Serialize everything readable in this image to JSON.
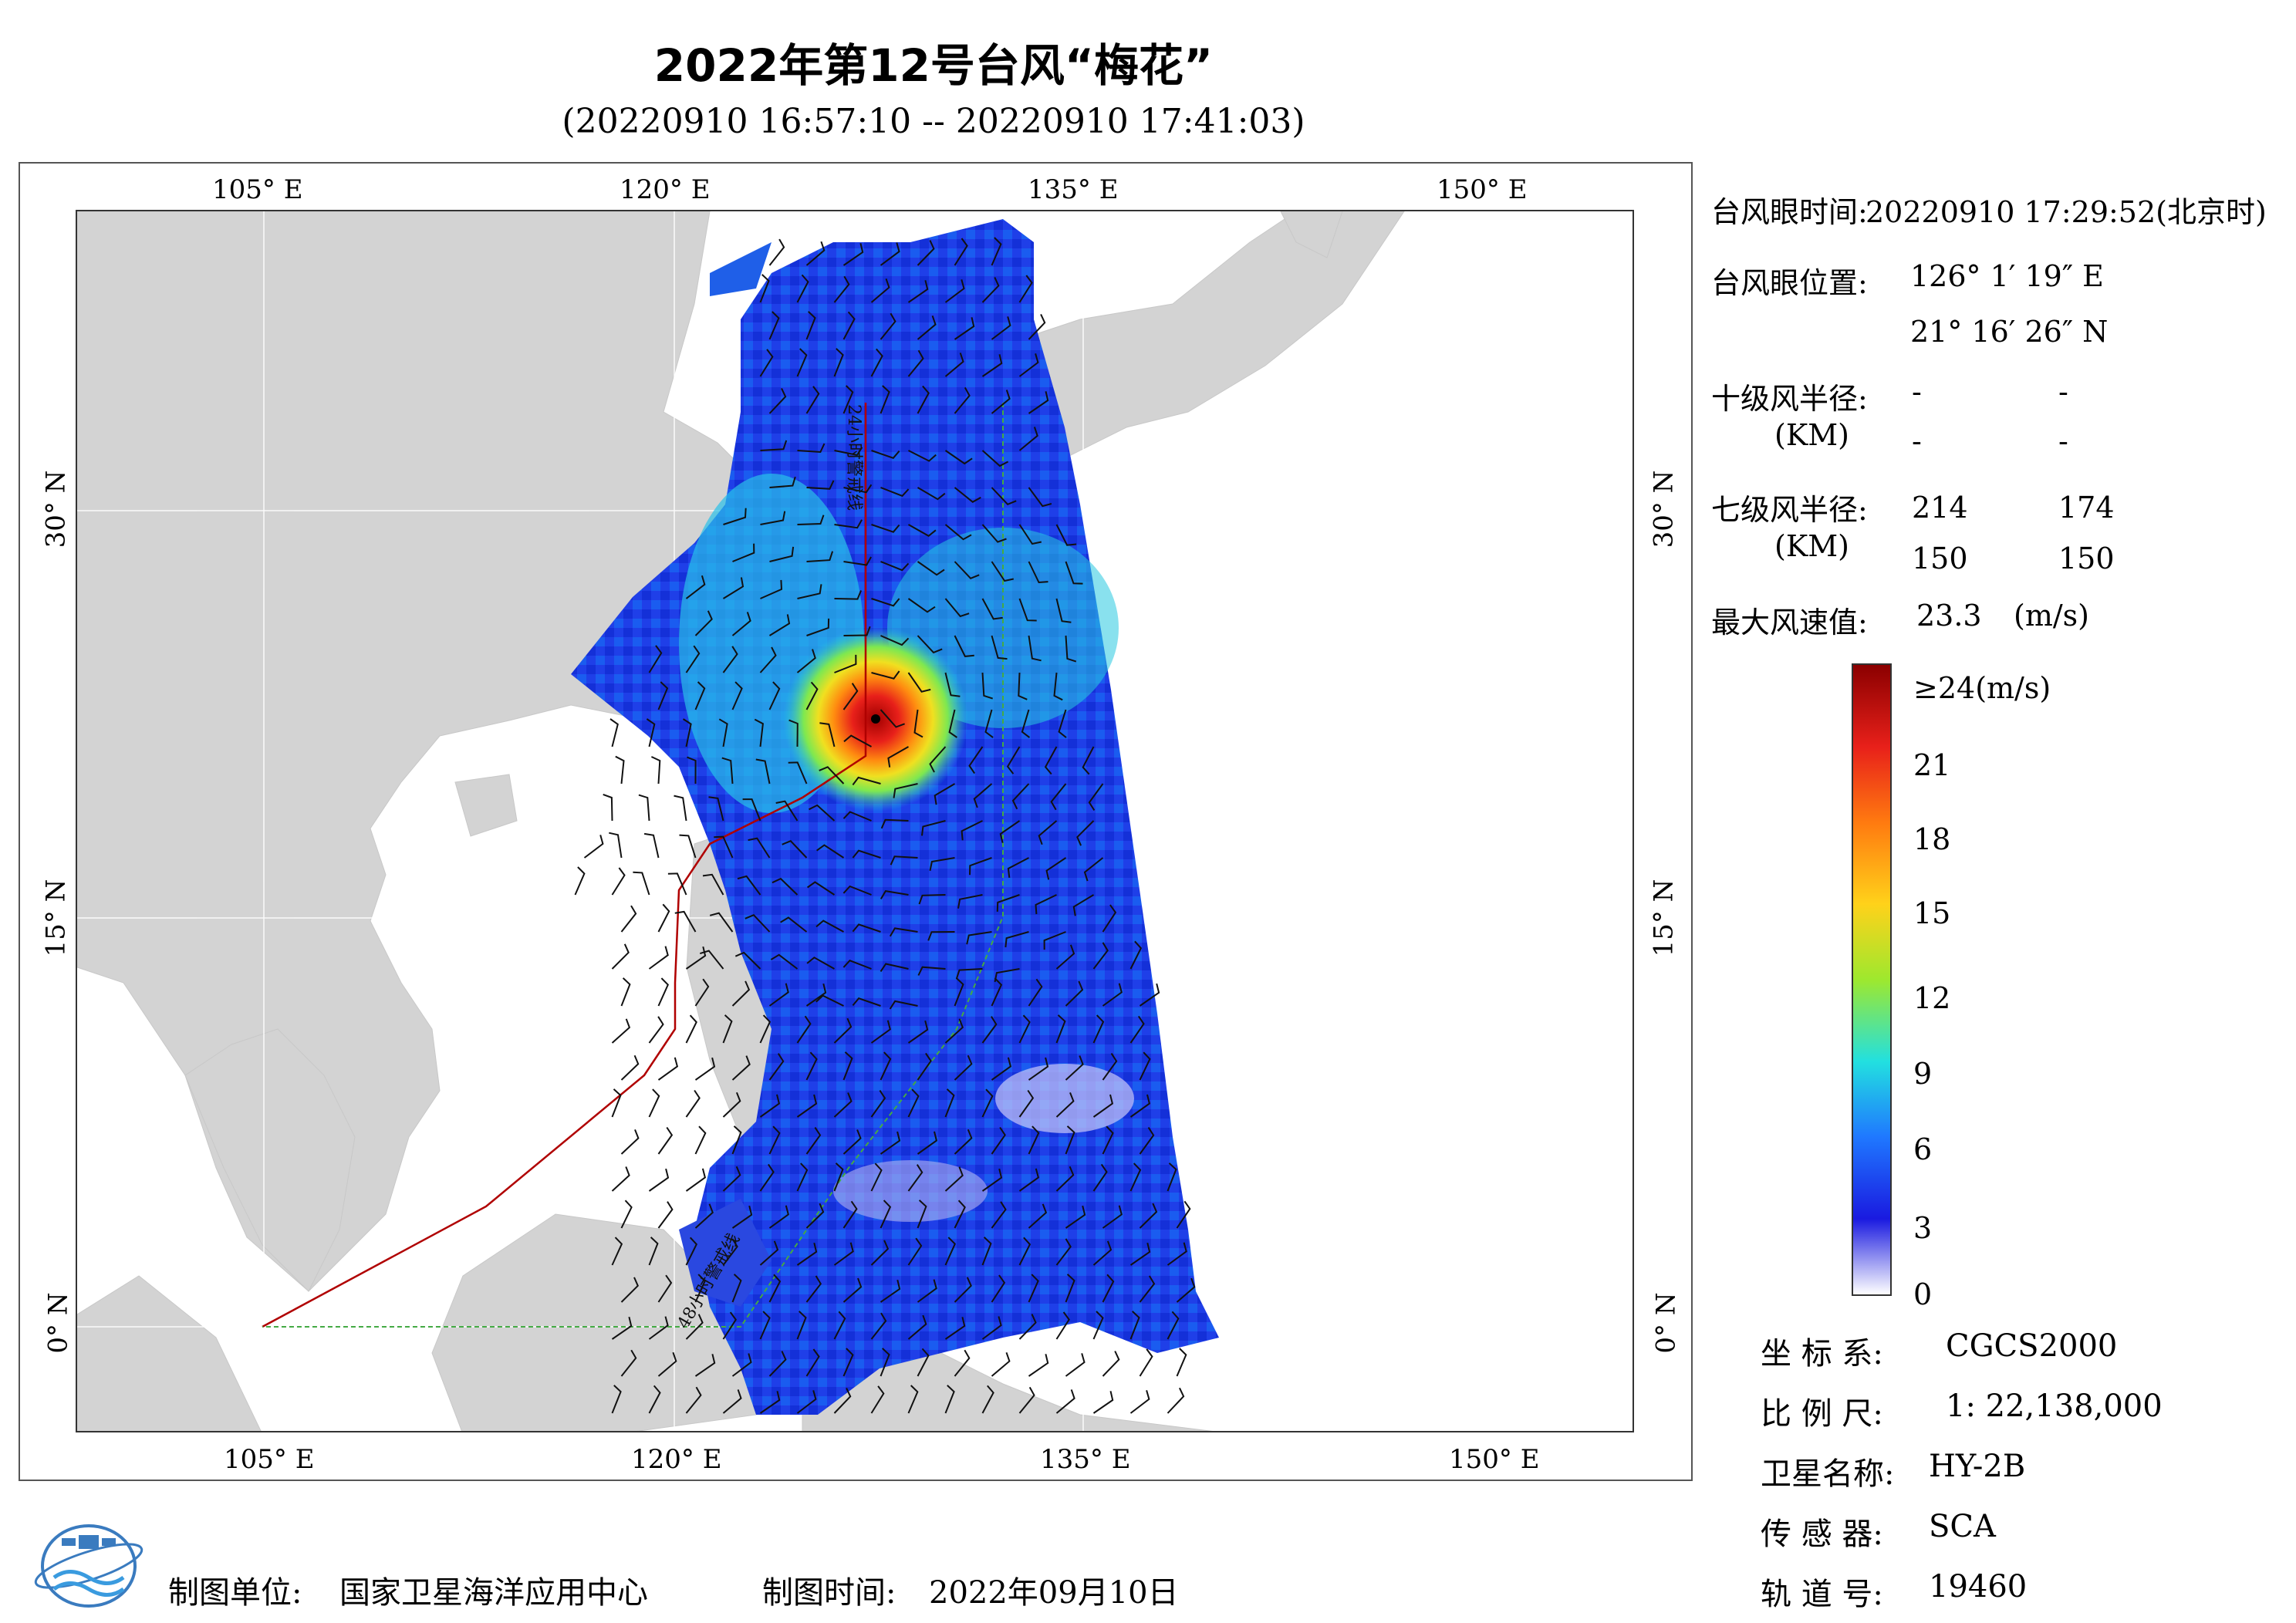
{
  "title": "2022年第12号台风“梅花”",
  "subtitle": "(20220910 16:57:10 -- 20220910 17:41:03)",
  "axes": {
    "lon_labels": [
      "105° E",
      "120° E",
      "135° E",
      "150° E"
    ],
    "lat_labels": [
      "30° N",
      "15° N",
      "0° N"
    ],
    "lon_range": [
      98,
      155
    ],
    "lat_range": [
      -4,
      41
    ]
  },
  "map_annotations": {
    "line_24h": "24小时警戒线",
    "line_48h": "48小时警戒线"
  },
  "typhoon_eye": {
    "time_label": "台风眼时间:",
    "time_value": "20220910 17:29:52(北京时)",
    "position_label": "台风眼位置:",
    "lon": "126° 1′ 19″ E",
    "lat": "21° 16′ 26″ N",
    "lon_deg": 126.02,
    "lat_deg": 21.27
  },
  "radius10": {
    "label": "十级风半径:",
    "unit": "(KM)",
    "values": [
      "-",
      "-",
      "-",
      "-"
    ]
  },
  "radius7": {
    "label": "七级风半径:",
    "unit": "(KM)",
    "values": [
      "214",
      "174",
      "150",
      "150"
    ]
  },
  "max_wind": {
    "label": "最大风速值:",
    "value": "23.3",
    "unit": "(m/s)"
  },
  "legend": {
    "labels": [
      "≥24(m/s)",
      "21",
      "18",
      "15",
      "12",
      "9",
      "6",
      "3",
      "0"
    ],
    "colors": [
      "#8b0000",
      "#e8201a",
      "#ff7a10",
      "#ffd21a",
      "#9ee82e",
      "#22e0e0",
      "#1f78ff",
      "#1a1ae0",
      "#ffffff"
    ]
  },
  "meta": {
    "coord_label": "坐 标 系:",
    "coord_value": "CGCS2000",
    "scale_label": "比 例 尺:",
    "scale_value": "1: 22,138,000",
    "satellite_label": "卫星名称:",
    "satellite_value": "HY-2B",
    "sensor_label": "传 感 器:",
    "sensor_value": "SCA",
    "orbit_label": "轨 道 号:",
    "orbit_value": "19460"
  },
  "footer": {
    "unit_label": "制图单位:",
    "unit_value": "国家卫星海洋应用中心",
    "date_label": "制图时间:",
    "date_value": "2022年09月10日"
  },
  "colors": {
    "land": "#d3d3d3",
    "warning_24h": "#b00000",
    "warning_48h": "#44aa44"
  }
}
